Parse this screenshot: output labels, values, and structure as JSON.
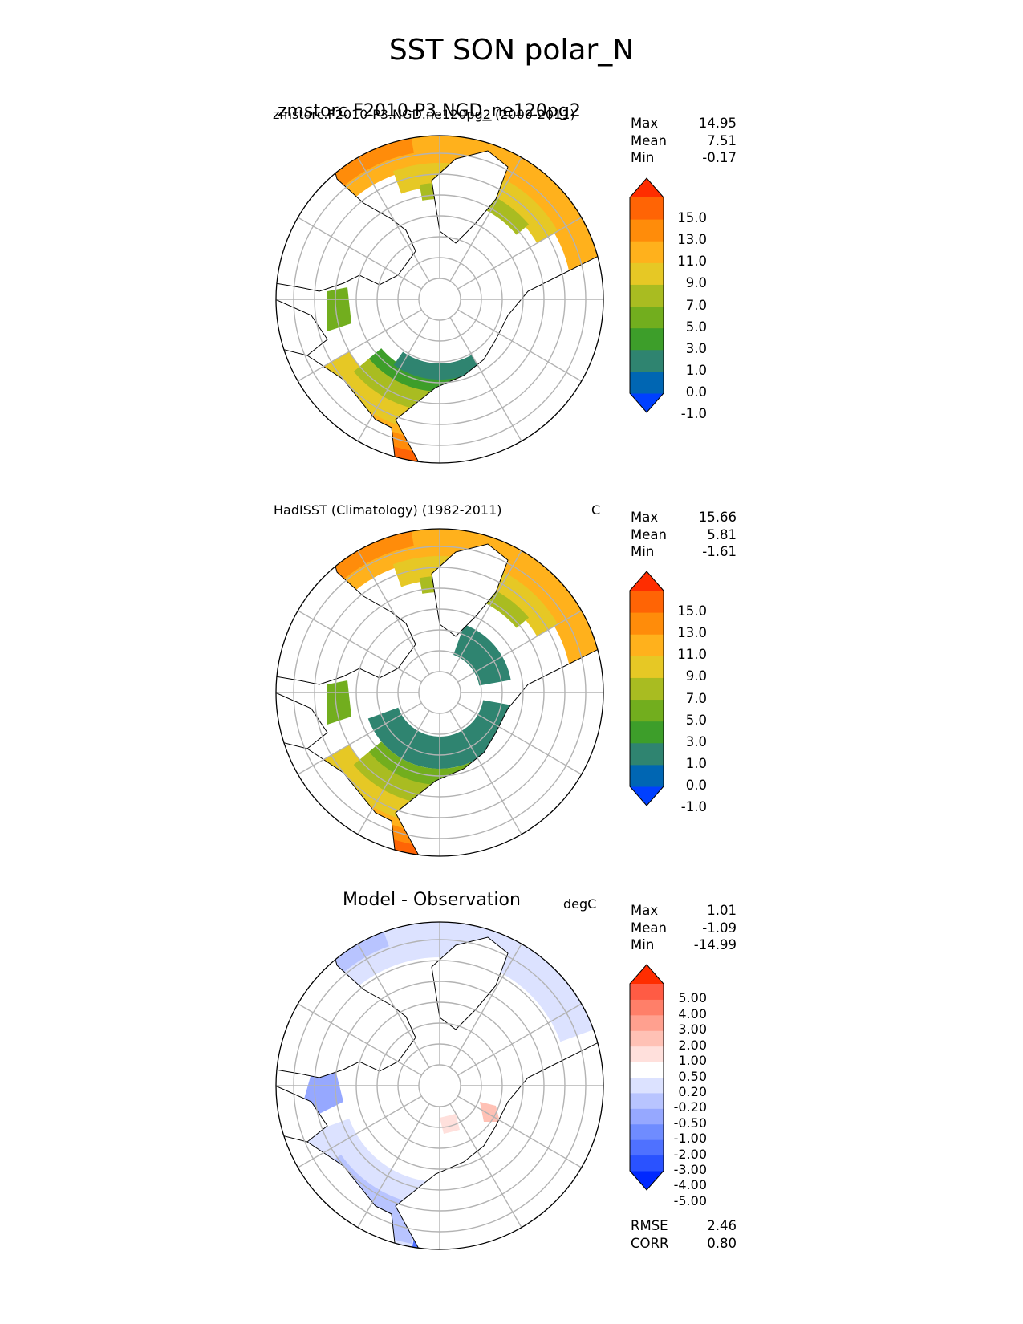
{
  "page_title": "SST SON polar_N",
  "panels": [
    {
      "id": "model",
      "left_title": "zmstorc.F2010-P3.NGD.ne120pg2 (2000-2011)",
      "left_title_overlap": "zmstorc.F2010-P3.NGD_ne120pg2",
      "units": "",
      "stats": [
        {
          "label": "Max",
          "value": "14.95"
        },
        {
          "label": "Mean",
          "value": "7.51"
        },
        {
          "label": "Min",
          "value": "-0.17"
        }
      ],
      "colorbar_ticks": [
        "15.0",
        "13.0",
        "11.0",
        "9.0",
        "7.0",
        "5.0",
        "3.0",
        "1.0",
        "0.0",
        "-1.0"
      ]
    },
    {
      "id": "obs",
      "left_title": "HadISST (Climatology) (1982-2011)",
      "units": "C",
      "stats": [
        {
          "label": "Max",
          "value": "15.66"
        },
        {
          "label": "Mean",
          "value": "5.81"
        },
        {
          "label": "Min",
          "value": "-1.61"
        }
      ],
      "colorbar_ticks": [
        "15.0",
        "13.0",
        "11.0",
        "9.0",
        "7.0",
        "5.0",
        "3.0",
        "1.0",
        "0.0",
        "-1.0"
      ]
    },
    {
      "id": "diff",
      "center_title": "Model - Observation",
      "units": "degC",
      "stats": [
        {
          "label": "Max",
          "value": "1.01"
        },
        {
          "label": "Mean",
          "value": "-1.09"
        },
        {
          "label": "Min",
          "value": "-14.99"
        }
      ],
      "colorbar_ticks": [
        "5.00",
        "4.00",
        "3.00",
        "2.00",
        "1.00",
        "0.50",
        "0.20",
        "-0.20",
        "-0.50",
        "-1.00",
        "-2.00",
        "-3.00",
        "-4.00",
        "-5.00"
      ],
      "metrics": [
        {
          "label": "RMSE",
          "value": "2.46"
        },
        {
          "label": "CORR",
          "value": "0.80"
        }
      ]
    }
  ],
  "colors": {
    "sst_levels": [
      "#0040ff",
      "#0066b3",
      "#2f8470",
      "#3d9e2a",
      "#72ae1e",
      "#a9bc21",
      "#e6c825",
      "#ffb11c",
      "#ff8c0a",
      "#ff6405",
      "#ff2d00"
    ],
    "diff_levels": [
      "#0028ff",
      "#2a52ff",
      "#4f71ff",
      "#6f8cff",
      "#96a8ff",
      "#b8c4ff",
      "#dce2ff",
      "#ffffff",
      "#ffe0dc",
      "#ffc1b5",
      "#ffa08f",
      "#ff7f69",
      "#ff5b44",
      "#ff2d00"
    ],
    "grid": "#b3b3b3",
    "coast": "#000000"
  },
  "chart_data": [
    {
      "type": "heatmap",
      "title": "zmstorc.F2010-P3.NGD.ne120pg2 (2000-2011)",
      "projection": "north-polar-stereographic",
      "legend_placement": "right",
      "grid": true,
      "colorbar": {
        "levels": [
          -1.0,
          0.0,
          1.0,
          3.0,
          5.0,
          7.0,
          9.0,
          11.0,
          13.0,
          15.0
        ],
        "extend": "both"
      },
      "stats": {
        "max": 14.95,
        "mean": 7.51,
        "min": -0.17
      }
    },
    {
      "type": "heatmap",
      "title": "HadISST (Climatology) (1982-2011)",
      "units": "C",
      "projection": "north-polar-stereographic",
      "legend_placement": "right",
      "grid": true,
      "colorbar": {
        "levels": [
          -1.0,
          0.0,
          1.0,
          3.0,
          5.0,
          7.0,
          9.0,
          11.0,
          13.0,
          15.0
        ],
        "extend": "both"
      },
      "stats": {
        "max": 15.66,
        "mean": 5.81,
        "min": -1.61
      }
    },
    {
      "type": "heatmap",
      "title": "Model - Observation",
      "units": "degC",
      "projection": "north-polar-stereographic",
      "legend_placement": "right",
      "grid": true,
      "colorbar": {
        "levels": [
          -5.0,
          -4.0,
          -3.0,
          -2.0,
          -1.0,
          -0.5,
          -0.2,
          0.2,
          0.5,
          1.0,
          2.0,
          3.0,
          4.0,
          5.0
        ],
        "extend": "both"
      },
      "stats": {
        "max": 1.01,
        "mean": -1.09,
        "min": -14.99,
        "rmse": 2.46,
        "corr": 0.8
      }
    }
  ]
}
